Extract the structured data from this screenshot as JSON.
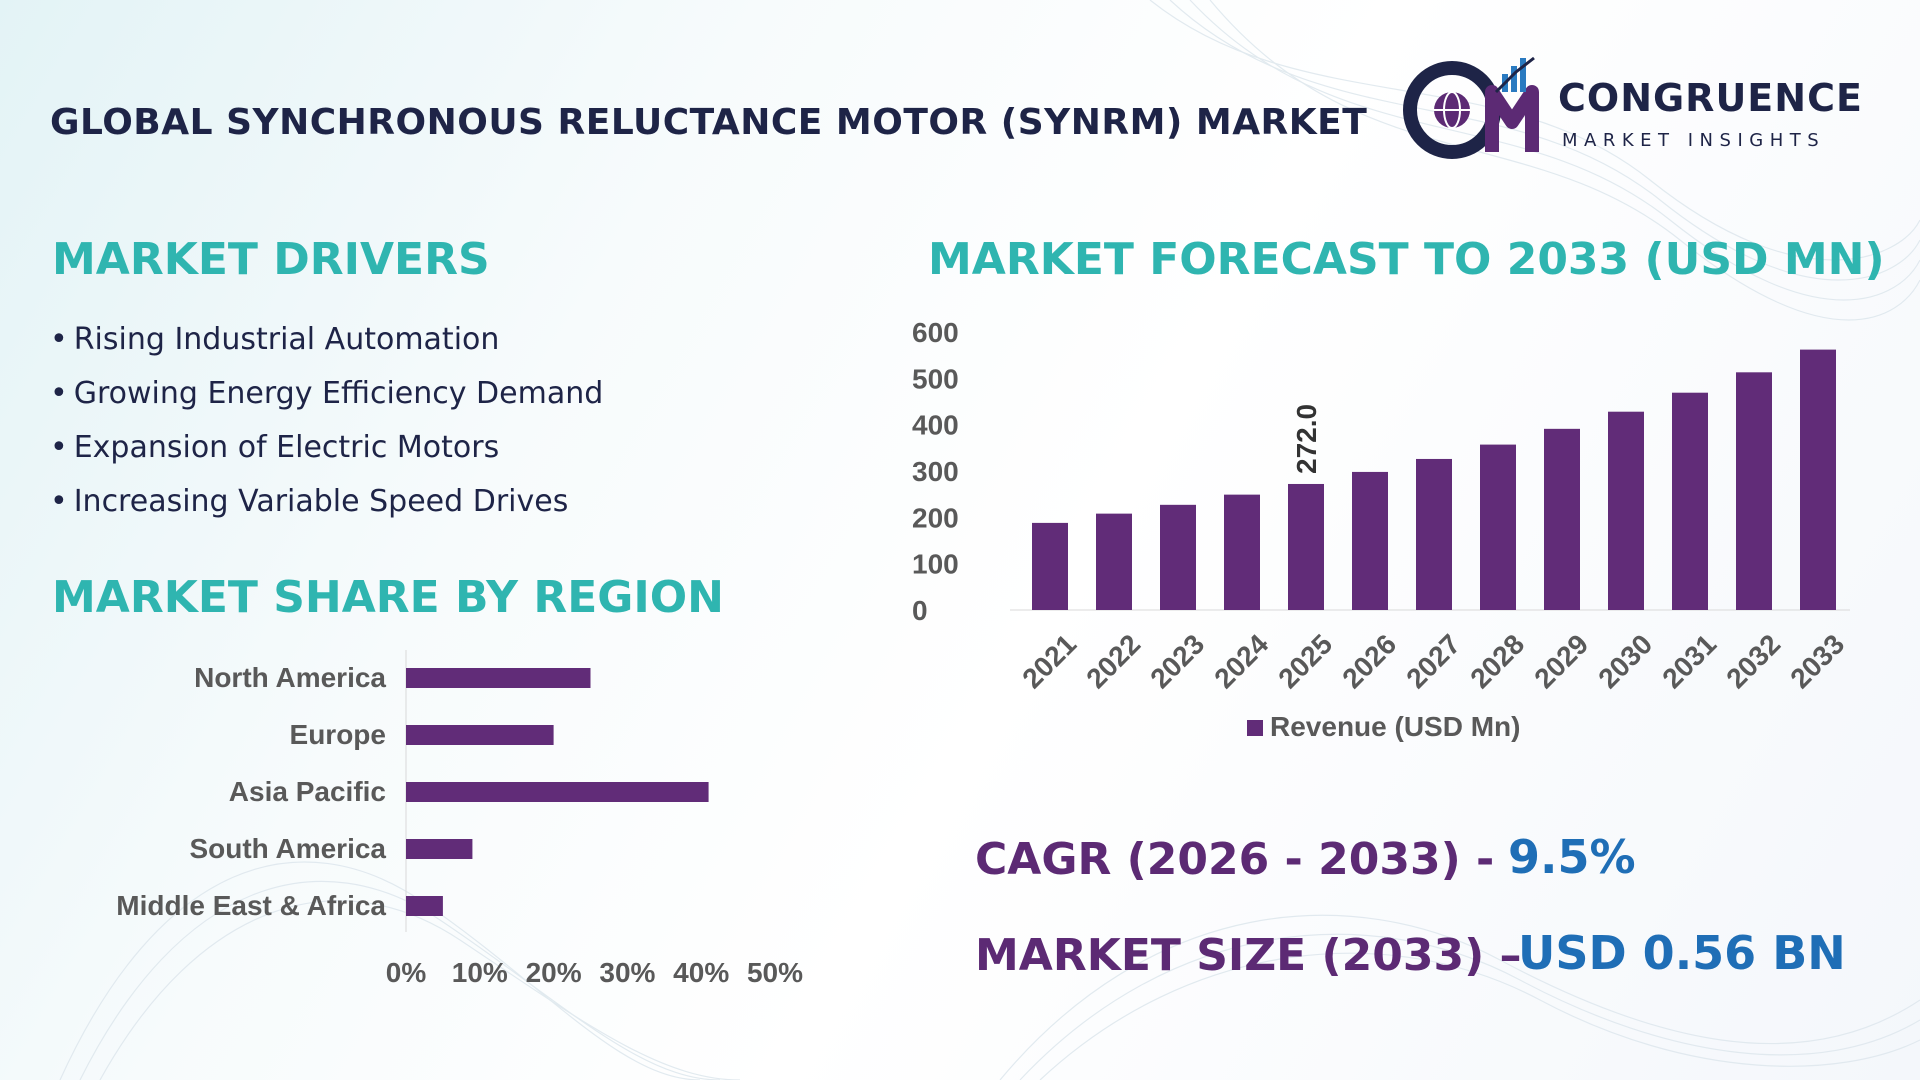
{
  "header": {
    "title": "GLOBAL SYNCHRONOUS RELUCTANCE MOTOR (SYNRM) MARKET",
    "logo_mark": "CM",
    "logo_name": "CONGRUENCE",
    "logo_sub": "MARKET INSIGHTS"
  },
  "drivers": {
    "title": "MARKET DRIVERS",
    "bullet": "•",
    "items": [
      "Rising Industrial Automation",
      "Growing Energy Efficiency Demand",
      "Expansion of Electric Motors",
      "Increasing Variable Speed Drives"
    ]
  },
  "region": {
    "title": "MARKET SHARE BY REGION"
  },
  "forecast": {
    "title": "MARKET FORECAST TO 2033 (USD MN)"
  },
  "kpis": {
    "cagr_label": "CAGR (2026 - 2033) -",
    "cagr_value": "9.5%",
    "size_label": "MARKET SIZE (2033) –",
    "size_value": "USD 0.56 BN"
  },
  "colors": {
    "bar": "#612c78",
    "axis_text": "#595959",
    "section_title": "#2fb5b0",
    "kpi_label": "#5c2a74",
    "kpi_value": "#1f6eb6",
    "title": "#1e2447"
  },
  "chart_data": [
    {
      "type": "bar",
      "orientation": "horizontal",
      "categories": [
        "North America",
        "Europe",
        "Asia Pacific",
        "South America",
        "Middle East & Africa"
      ],
      "values": [
        25,
        20,
        41,
        9,
        5
      ],
      "xticks": [
        "0%",
        "10%",
        "20%",
        "30%",
        "40%",
        "50%"
      ],
      "xlim": [
        0,
        50
      ],
      "grid": false
    },
    {
      "type": "bar",
      "categories": [
        "2021",
        "2022",
        "2023",
        "2024",
        "2025",
        "2026",
        "2027",
        "2028",
        "2029",
        "2030",
        "2031",
        "2032",
        "2033"
      ],
      "series": [
        {
          "name": "Revenue (USD Mn)",
          "values": [
            188,
            208,
            227,
            249,
            272.0,
            298,
            326,
            357,
            391,
            428,
            469,
            513,
            562
          ]
        }
      ],
      "data_labels": [
        {
          "category": "2025",
          "text": "272.0"
        }
      ],
      "yticks": [
        "0",
        "100",
        "200",
        "300",
        "400",
        "500",
        "600"
      ],
      "ylim": [
        0,
        600
      ],
      "legend": "bottom",
      "grid": false
    }
  ]
}
